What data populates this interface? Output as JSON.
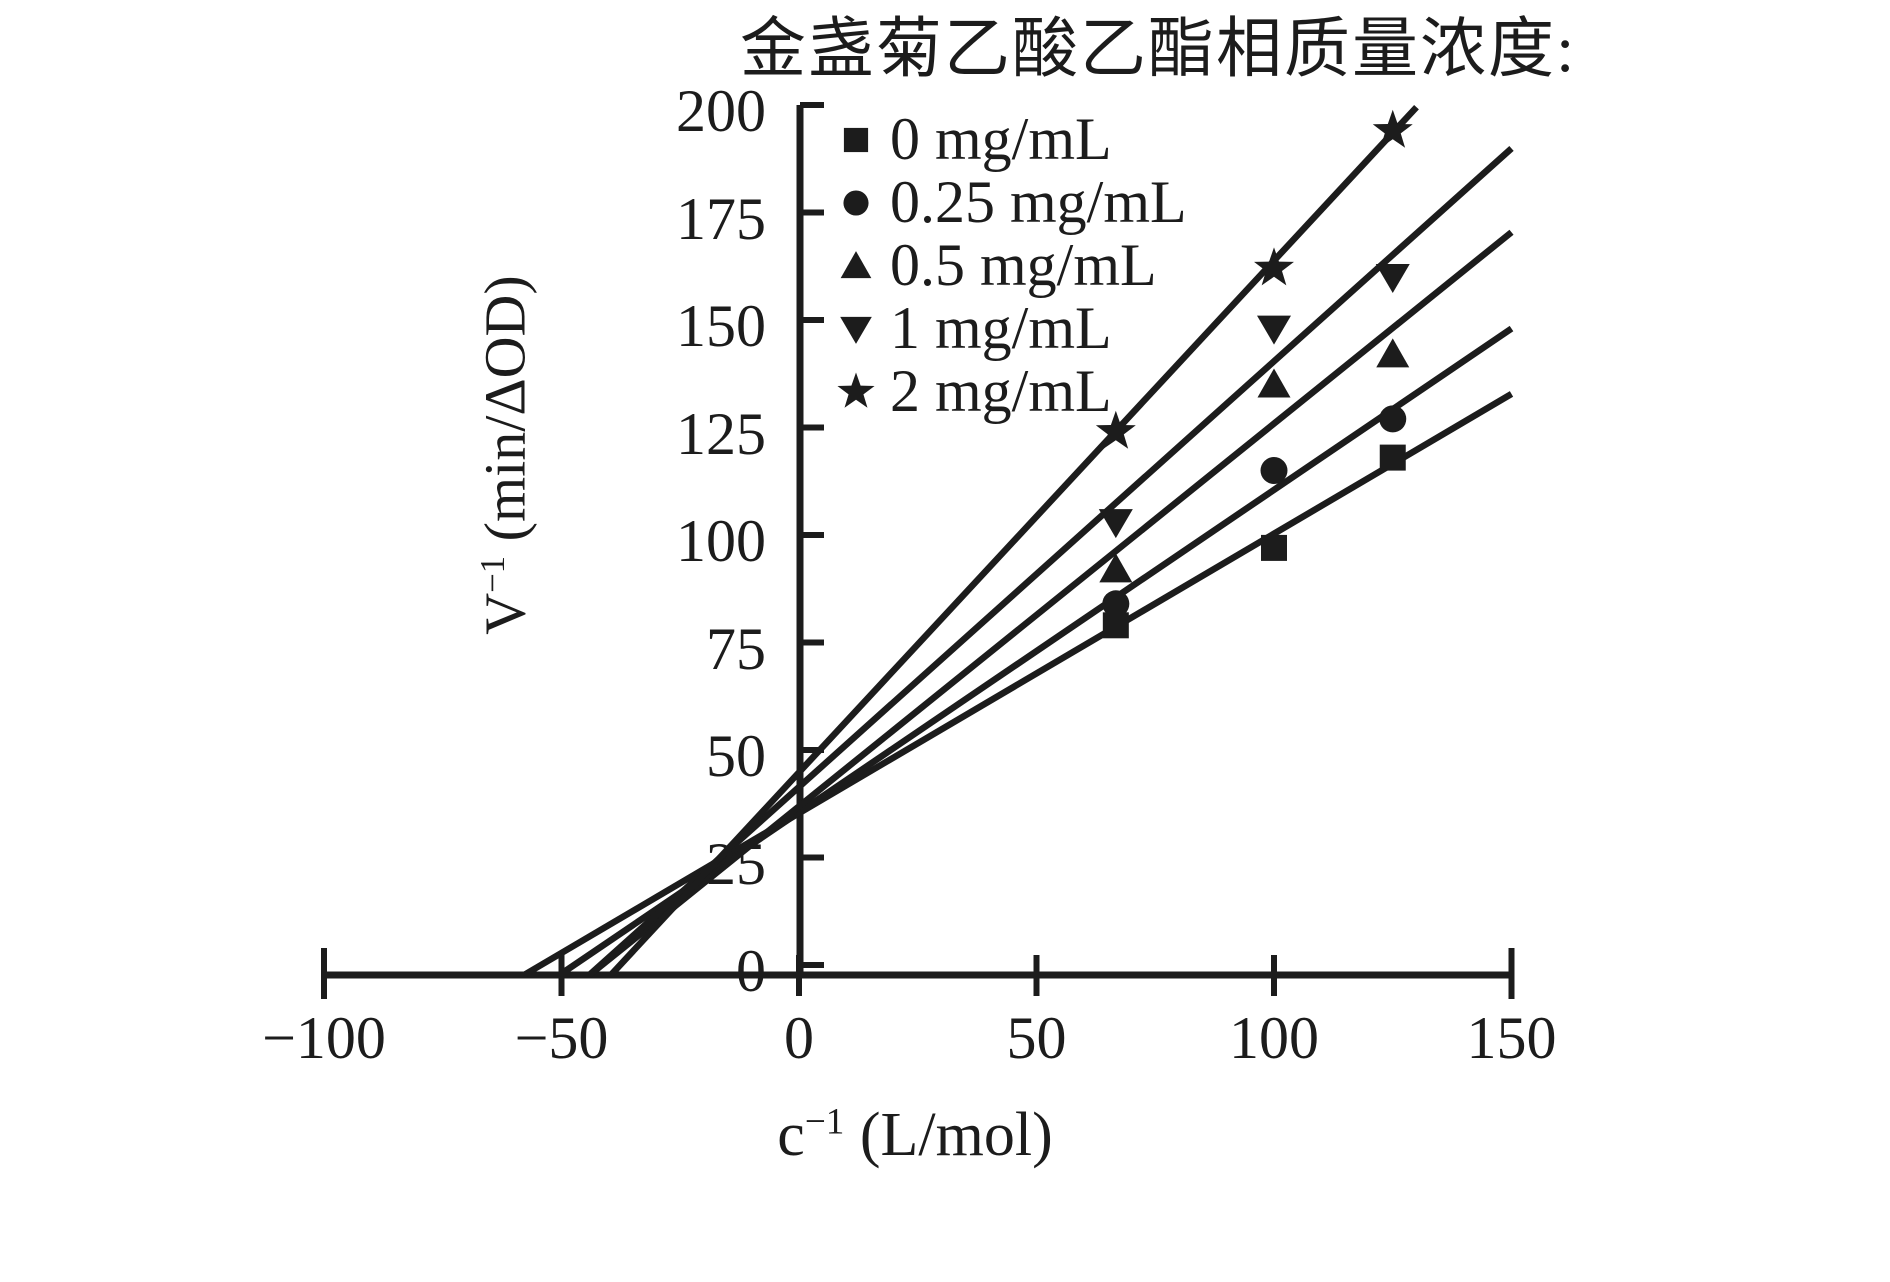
{
  "figure": {
    "background": "#ffffff",
    "ink_color": "#1c1c1c"
  },
  "chart_data": {
    "type": "scatter",
    "title": "金盏菊乙酸乙酯相质量浓度:",
    "xlabel": {
      "base": "c",
      "sup": "−1",
      "rest": " (L/mol)"
    },
    "ylabel": {
      "base": "V",
      "sup": "−1",
      "rest": " (min/ΔOD)"
    },
    "xlim": [
      -100,
      150
    ],
    "ylim": [
      0,
      200
    ],
    "x_tick_labels": [
      "−100",
      "−50",
      "0",
      "50",
      "100",
      "150"
    ],
    "x_tick_values": [
      -100,
      -50,
      0,
      50,
      100,
      150
    ],
    "y_tick_labels": [
      "0",
      "25",
      "50",
      "75",
      "100",
      "125",
      "150",
      "175",
      "200"
    ],
    "y_tick_values": [
      0,
      25,
      50,
      75,
      100,
      125,
      150,
      175,
      200
    ],
    "grid": false,
    "legend_position": "top-left-inside",
    "x": [
      66.7,
      100,
      125
    ],
    "series": [
      {
        "name": "0 mg/mL",
        "marker": "square",
        "y": [
          79,
          97,
          118
        ],
        "fit_line": {
          "slope": 0.65,
          "intercept": 35.3
        }
      },
      {
        "name": "0.25 mg/mL",
        "marker": "circle",
        "y": [
          84,
          115,
          127
        ],
        "fit_line": {
          "slope": 0.75,
          "intercept": 35.5
        }
      },
      {
        "name": "0.5 mg/mL",
        "marker": "triangle-up",
        "y": [
          92,
          135,
          142
        ],
        "fit_line": {
          "slope": 0.89,
          "intercept": 36.9
        }
      },
      {
        "name": "1 mg/mL",
        "marker": "triangle-down",
        "y": [
          103,
          148,
          160
        ],
        "fit_line": {
          "slope": 0.99,
          "intercept": 41.4
        }
      },
      {
        "name": "2 mg/mL",
        "marker": "star",
        "y": [
          124,
          162,
          194
        ],
        "fit_line": {
          "slope": 1.19,
          "intercept": 44.8
        }
      }
    ]
  }
}
